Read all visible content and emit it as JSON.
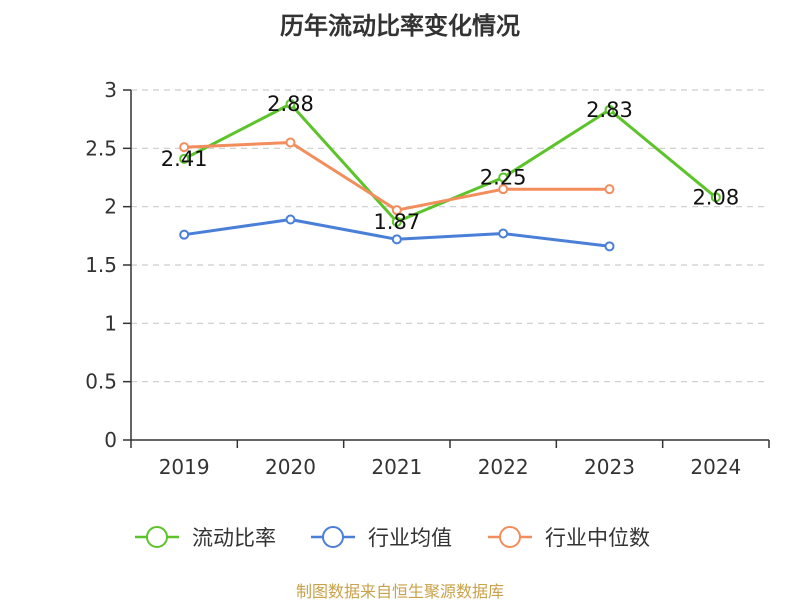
{
  "chart_data": {
    "type": "line",
    "title": "历年流动比率变化情况",
    "categories": [
      "2019",
      "2020",
      "2021",
      "2022",
      "2023",
      "2024"
    ],
    "ylim": [
      0,
      3
    ],
    "yticks": [
      "0",
      "0.5",
      "1",
      "1.5",
      "2",
      "2.5",
      "3"
    ],
    "grid": true,
    "legend_position": "bottom",
    "series": [
      {
        "name": "流动比率",
        "color": "#5cc42a",
        "values": [
          2.41,
          2.88,
          1.87,
          2.25,
          2.83,
          2.08
        ],
        "data_labels": [
          "2.41",
          "2.88",
          "1.87",
          "2.25",
          "2.83",
          "2.08"
        ]
      },
      {
        "name": "行业均值",
        "color": "#4a7fd8",
        "values": [
          1.76,
          1.89,
          1.72,
          1.77,
          1.66,
          null
        ]
      },
      {
        "name": "行业中位数",
        "color": "#f38d5c",
        "values": [
          2.51,
          2.55,
          1.97,
          2.15,
          2.15,
          null
        ]
      }
    ]
  },
  "footer": {
    "source": "制图数据来自恒生聚源数据库"
  }
}
